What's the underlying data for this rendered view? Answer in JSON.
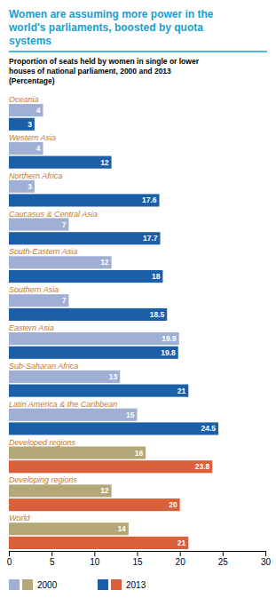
{
  "chart_data": {
    "type": "bar",
    "orientation": "horizontal",
    "title": "Women are assuming more power in the\nworld's parliaments, boosted by quota\nsystems",
    "subtitle": "Proportion of seats held by women in single or lower\nhouses of national parliament, 2000 and 2013\n(Percentage)",
    "categories": [
      "Oceania",
      "Western Asia",
      "Northern Africa",
      "Caucasus & Central Asia",
      "South-Eastern Asia",
      "Southern Asia",
      "Eastern Asia",
      "Sub-Saharan Africa",
      "Latin America & the Caribbean",
      "Developed regions",
      "Developing regions",
      "World"
    ],
    "series": [
      {
        "name": "2000",
        "values": [
          4,
          4,
          3,
          7,
          12,
          7,
          19.9,
          13,
          15,
          16,
          12,
          14
        ],
        "colors": [
          "#a0afd4",
          "#a0afd4",
          "#a0afd4",
          "#a0afd4",
          "#a0afd4",
          "#a0afd4",
          "#a0afd4",
          "#a0afd4",
          "#a0afd4",
          "#b5a878",
          "#b5a878",
          "#b5a878"
        ]
      },
      {
        "name": "2013",
        "values": [
          3,
          12,
          17.6,
          17.7,
          18,
          18.5,
          19.8,
          21,
          24.5,
          23.8,
          20,
          21
        ],
        "colors": [
          "#1a5fa8",
          "#1a5fa8",
          "#1a5fa8",
          "#1a5fa8",
          "#1a5fa8",
          "#1a5fa8",
          "#1a5fa8",
          "#1a5fa8",
          "#1a5fa8",
          "#d9603b",
          "#d9603b",
          "#d9603b"
        ]
      }
    ],
    "xlim": [
      0,
      30
    ],
    "xticks": [
      0,
      5,
      10,
      15,
      20,
      25,
      30
    ],
    "data_labels": true
  }
}
